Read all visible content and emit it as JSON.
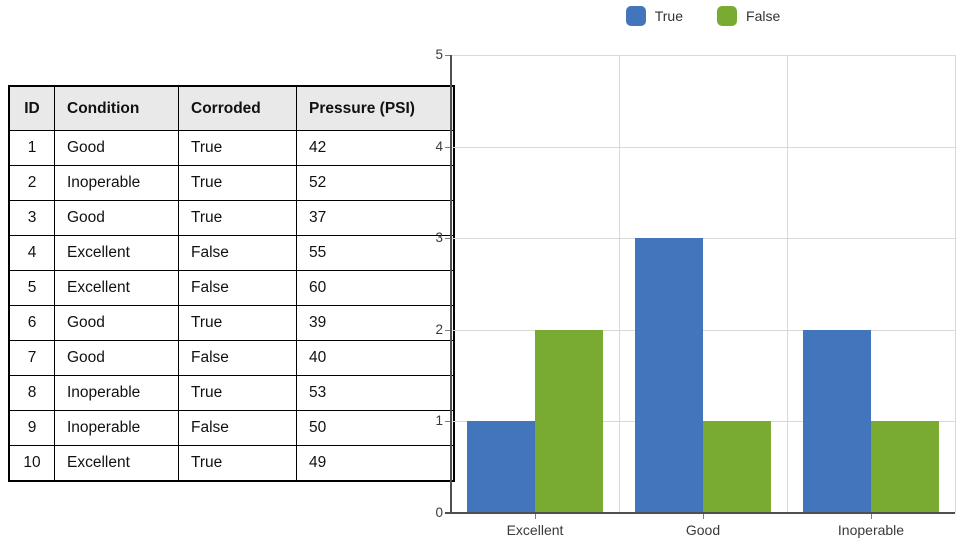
{
  "table": {
    "headers": [
      "ID",
      "Condition",
      "Corroded",
      "Pressure (PSI)"
    ],
    "rows": [
      [
        "1",
        "Good",
        "True",
        "42"
      ],
      [
        "2",
        "Inoperable",
        "True",
        "52"
      ],
      [
        "3",
        "Good",
        "True",
        "37"
      ],
      [
        "4",
        "Excellent",
        "False",
        "55"
      ],
      [
        "5",
        "Excellent",
        "False",
        "60"
      ],
      [
        "6",
        "Good",
        "True",
        "39"
      ],
      [
        "7",
        "Good",
        "False",
        "40"
      ],
      [
        "8",
        "Inoperable",
        "True",
        "53"
      ],
      [
        "9",
        "Inoperable",
        "False",
        "50"
      ],
      [
        "10",
        "Excellent",
        "True",
        "49"
      ]
    ]
  },
  "chart_data": {
    "type": "bar",
    "title": "",
    "xlabel": "",
    "ylabel": "",
    "categories": [
      "Excellent",
      "Good",
      "Inoperable"
    ],
    "series": [
      {
        "name": "True",
        "color": "#4375bd",
        "values": [
          1,
          3,
          2
        ]
      },
      {
        "name": "False",
        "color": "#79ab33",
        "values": [
          2,
          1,
          1
        ]
      }
    ],
    "ylim": [
      0,
      5
    ],
    "yticks": [
      0,
      1,
      2,
      3,
      4,
      5
    ],
    "grid": true,
    "legend_position": "top"
  },
  "colors": {
    "true_series": "#4375bd",
    "false_series": "#79ab33",
    "gridline": "#d9d9d9",
    "axis": "#4f4f4f",
    "table_header_bg": "#e9e9e9",
    "table_border": "#000000"
  }
}
